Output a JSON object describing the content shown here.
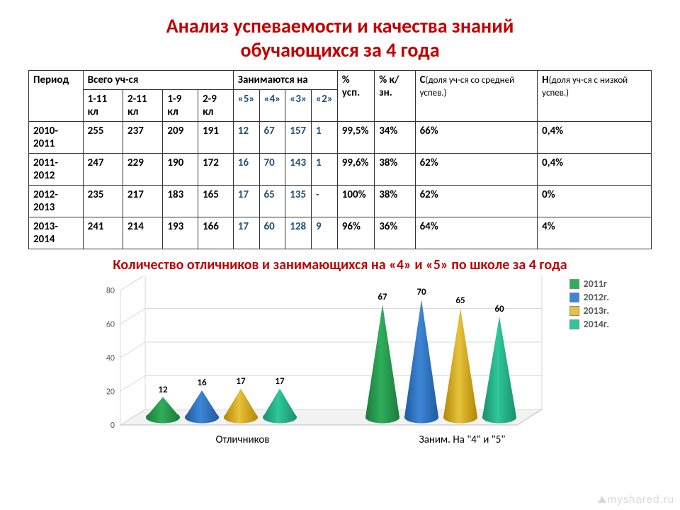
{
  "title_line1": "Анализ  успеваемости  и  качества  знаний",
  "title_line2": "обучающихся за 4 года",
  "table": {
    "header": {
      "period": "Период",
      "total": "Всего   уч-ся",
      "busy_on": "Занимаются на",
      "pct_usp": "% усп.",
      "pct_kzn": "% к/зн.",
      "c_label": "С",
      "c_text": "(доля уч-ся со средней успев.)",
      "n_label": "Н",
      "n_text": "(доля уч-ся с низкой успев.)",
      "sub_total": [
        "1-11 кл",
        "2-11 кл",
        "1-9  кл",
        "2-9 кл"
      ],
      "sub_grades": [
        "«5»",
        "«4»",
        "«3»",
        "«2»"
      ]
    },
    "rows": [
      {
        "period": "2010-2011",
        "total": [
          "255",
          "237",
          "209",
          "191"
        ],
        "g5": "12",
        "g4": "67",
        "g3": "157",
        "g2": "1",
        "usp": "99,5%",
        "kzn": "34%",
        "c": "66%",
        "n": "0,4%"
      },
      {
        "period": "2011-2012",
        "total": [
          "247",
          "229",
          "190",
          "172"
        ],
        "g5": "16",
        "g4": "70",
        "g3": "143",
        "g2": "1",
        "usp": "99,6%",
        "kzn": "38%",
        "c": "62%",
        "n": "0,4%"
      },
      {
        "period": "2012-2013",
        "total": [
          "235",
          "217",
          "183",
          "165"
        ],
        "g5": "17",
        "g4": "65",
        "g3": "135",
        "g2": "-",
        "usp": "100%",
        "kzn": "38%",
        "c": "62%",
        "n": "0%"
      },
      {
        "period": "2013-2014",
        "total": [
          "241",
          "214",
          "193",
          "166"
        ],
        "g5": "17",
        "g4": "60",
        "g3": "128",
        "g2": "9",
        "usp": "96%",
        "kzn": "36%",
        "c": "64%",
        "n": "4%"
      }
    ]
  },
  "subtitle": "Количество отличников  и занимающихся на «4» и «5»  по школе за 4 года",
  "chart": {
    "type": "3d-cone-bar",
    "background_color": "#ffffff",
    "floor_fill": "#f2f2f2",
    "floor_stroke": "#bfbfbf",
    "wall_fill": "#ffffff",
    "grid_color": "#d9d9d9",
    "ylim": [
      0,
      80
    ],
    "ytick_step": 20,
    "yticks": [
      "0",
      "20",
      "40",
      "60",
      "80"
    ],
    "categories": [
      "Отличников",
      "Заним. На \"4\" и \"5\""
    ],
    "series": [
      {
        "name": "2011г",
        "legend": "2011г",
        "color_dark": "#1b7a3b",
        "color_light": "#2fae5c"
      },
      {
        "name": "2012г.",
        "legend": "2012г.",
        "color_dark": "#1f5a9e",
        "color_light": "#3d86d6"
      },
      {
        "name": "2013г.",
        "legend": "2013г.",
        "color_dark": "#b38600",
        "color_light": "#e6c23d"
      },
      {
        "name": "2014г.",
        "legend": "2014г.",
        "color_dark": "#1a8f6d",
        "color_light": "#2fc79a"
      }
    ],
    "values": [
      [
        12,
        16,
        17,
        17
      ],
      [
        67,
        70,
        65,
        60
      ]
    ],
    "value_fontsize": 13,
    "axis_fontsize": 12,
    "legend_fontsize": 14,
    "cat_fontsize": 15
  },
  "watermark": "myshared.ru"
}
